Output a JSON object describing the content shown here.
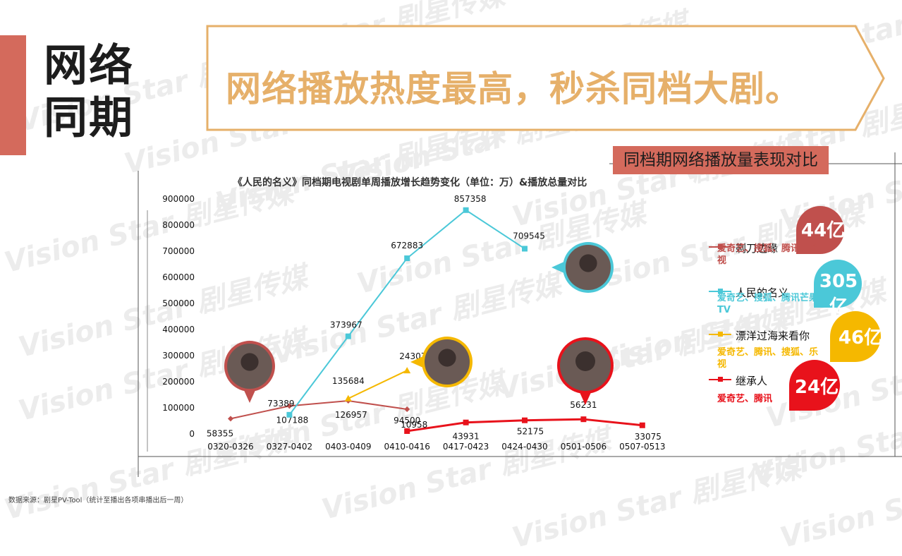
{
  "section_title": [
    "网络",
    "同期"
  ],
  "headline": "网络播放热度最高，秒杀同档大剧。",
  "compare_label": "同档期网络播放量表现对比",
  "watermark": "Vision Star 剧星传媒",
  "source_note": "数据来源：剧星PV-Tool（统计至播出各项串播出后一周）",
  "colors": {
    "accent_red": "#d46a5c",
    "gold": "#e6b06a",
    "brown_red": "#c0504d",
    "cyan": "#4bc8d8",
    "yellow": "#f5b800",
    "red": "#e8121b"
  },
  "chart_data": {
    "type": "line",
    "title": "《人民的名义》同档期电视剧单周播放增长趋势变化（单位：万）&播放总量对比",
    "categories": [
      "0320-0326",
      "0327-0402",
      "0403-0409",
      "0410-0416",
      "0417-0423",
      "0424-0430",
      "0501-0506",
      "0507-0513"
    ],
    "ylim": [
      0,
      900000
    ],
    "yticks": [
      0,
      100000,
      200000,
      300000,
      400000,
      500000,
      600000,
      700000,
      800000,
      900000
    ],
    "series": [
      {
        "name": "剃刀边缘",
        "color": "#c0504d",
        "marker": "diamond",
        "values": [
          58355,
          107188,
          126957,
          94500,
          null,
          null,
          null,
          null
        ],
        "labels": [
          "58355",
          "107188",
          "126957",
          "94500",
          null,
          null,
          null,
          null
        ],
        "total": "44亿",
        "platforms": "爱奇艺、搜狐、腾讯、乐视"
      },
      {
        "name": "人民的名义",
        "color": "#4bc8d8",
        "marker": "square",
        "values": [
          null,
          73389,
          373967,
          672883,
          857358,
          709545,
          null,
          null
        ],
        "labels": [
          null,
          "73389",
          "373967",
          "672883",
          "857358",
          "709545",
          null,
          null
        ],
        "total": "305亿",
        "platforms": "爱奇艺、搜狐、腾讯芒果TV"
      },
      {
        "name": "漂洋过海来看你",
        "color": "#f5b800",
        "marker": "triangle",
        "values": [
          null,
          null,
          135684,
          243072,
          null,
          null,
          null,
          null
        ],
        "labels": [
          null,
          null,
          "135684",
          "243072",
          null,
          null,
          null,
          null
        ],
        "total": "46亿",
        "platforms": "爱奇艺、腾讯、搜狐、乐视"
      },
      {
        "name": "继承人",
        "color": "#e8121b",
        "marker": "square",
        "values": [
          null,
          null,
          null,
          10958,
          43931,
          52175,
          56231,
          33075
        ],
        "labels": [
          null,
          null,
          null,
          "10958",
          "43931",
          "52175",
          "56231",
          "33075"
        ],
        "total": "24亿",
        "platforms": "爱奇艺、腾讯"
      }
    ],
    "legend_position": "right",
    "grid": false
  }
}
